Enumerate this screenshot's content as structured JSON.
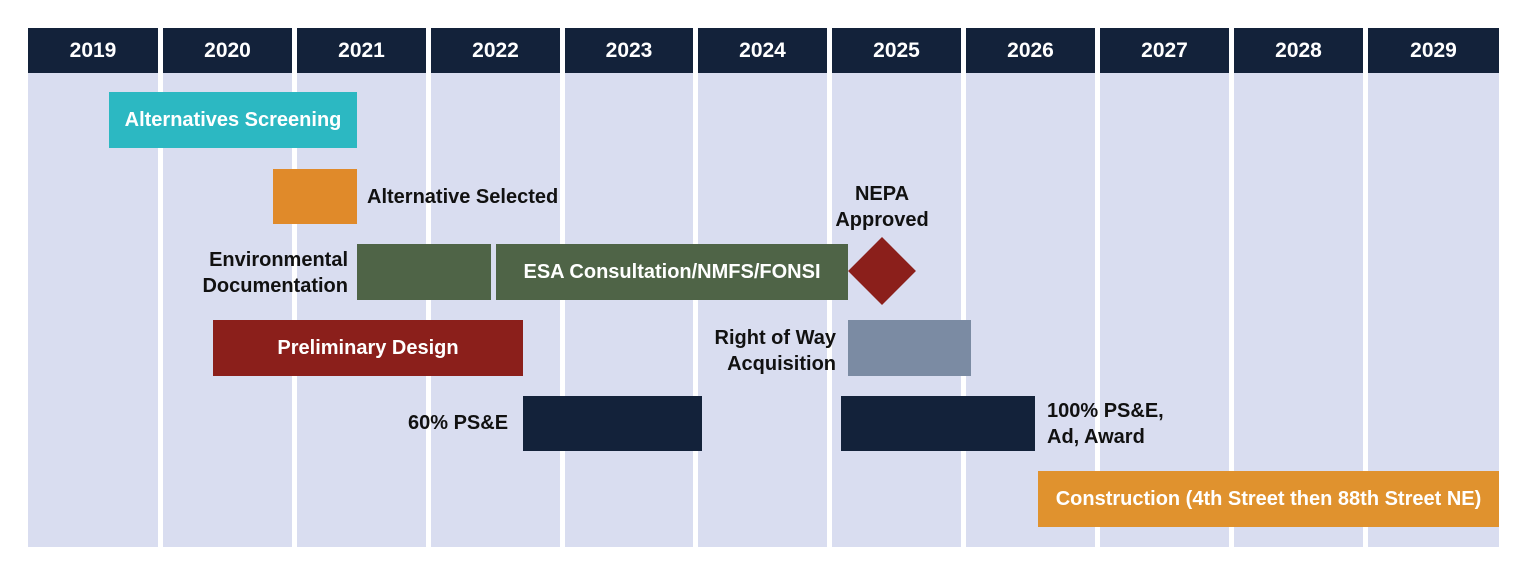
{
  "years": [
    "2019",
    "2020",
    "2021",
    "2022",
    "2023",
    "2024",
    "2025",
    "2026",
    "2027",
    "2028",
    "2029"
  ],
  "colors": {
    "header": "#13223a",
    "column": "#d9ddf0",
    "alternatives_screening": "#2cb8c2",
    "alternative_selected": "#e08a2a",
    "environmental": "#4f6447",
    "preliminary_design": "#8b1f1b",
    "row": "#7b8ba3",
    "pse": "#13223a",
    "construction": "#e0922e",
    "nepa": "#8b1f1b"
  },
  "bars": {
    "alternatives_screening": "Alternatives Screening",
    "esa_consultation": "ESA Consultation/NMFS/FONSI",
    "preliminary_design": "Preliminary Design",
    "construction": "Construction (4th Street then 88th Street NE)"
  },
  "labels": {
    "alternative_selected": "Alternative Selected",
    "nepa_approved": "NEPA\nApproved",
    "environmental_documentation": "Environmental\nDocumentation",
    "right_of_way": "Right of Way\nAcquisition",
    "pse_60": "60% PS&E",
    "pse_100": "100% PS&E,\nAd, Award"
  }
}
